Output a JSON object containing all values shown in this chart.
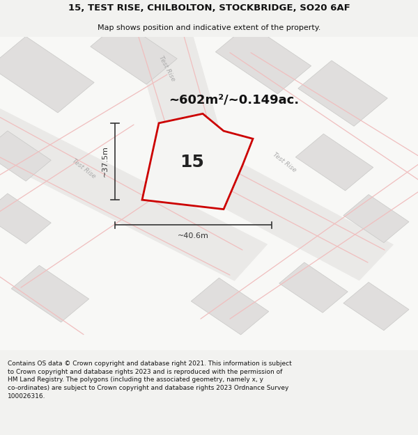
{
  "title_line1": "15, TEST RISE, CHILBOLTON, STOCKBRIDGE, SO20 6AF",
  "title_line2": "Map shows position and indicative extent of the property.",
  "area_text": "~602m²/~0.149ac.",
  "property_number": "15",
  "width_label": "~40.6m",
  "height_label": "~37.5m",
  "footnote": "Contains OS data © Crown copyright and database right 2021. This information is subject to Crown copyright and database rights 2023 and is reproduced with the permission of HM Land Registry. The polygons (including the associated geometry, namely x, y co-ordinates) are subject to Crown copyright and database rights 2023 Ordnance Survey 100026316.",
  "bg_color": "#f2f2f0",
  "map_bg": "#f8f8f6",
  "property_fill": "#f5f5f3",
  "property_edge": "#cc0000",
  "street_label_color": "#aaaaaa",
  "title_color": "#111111",
  "footnote_color": "#111111",
  "measure_color": "#333333",
  "building_fill": "#e0dedd",
  "building_edge": "#c8c8c6",
  "road_fill": "#eae9e7",
  "pink_line": "#f0bebe"
}
